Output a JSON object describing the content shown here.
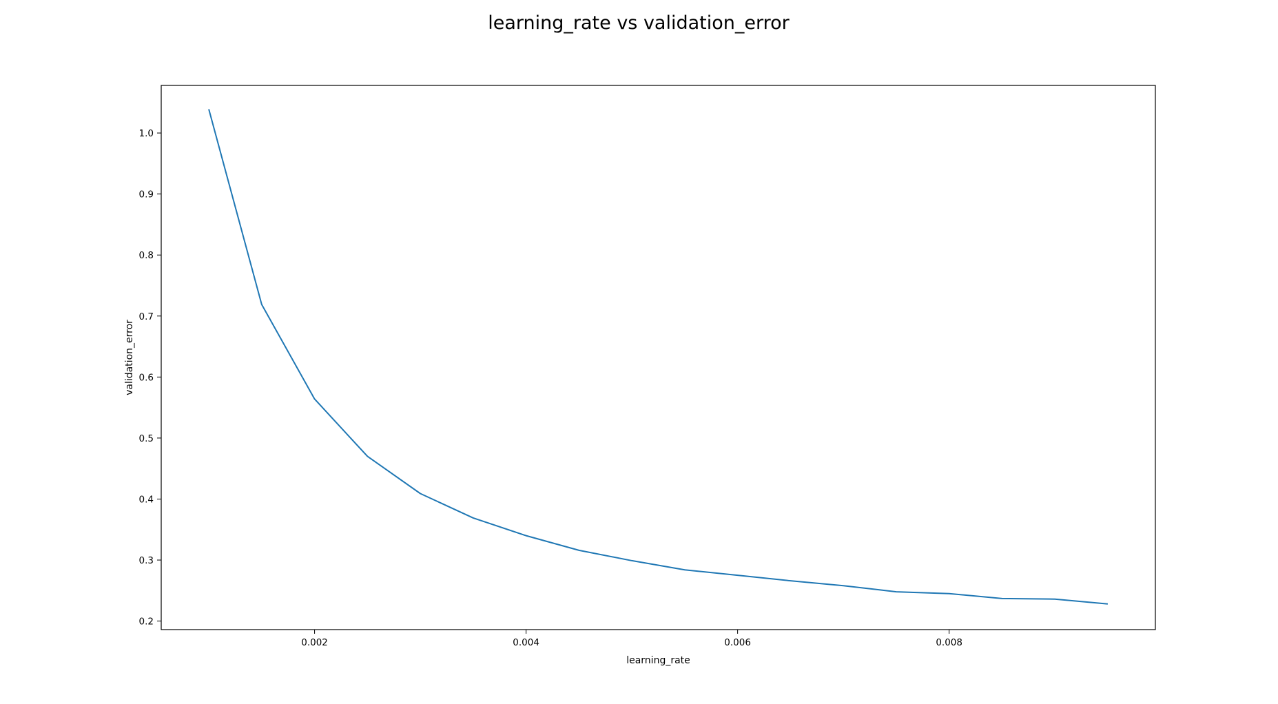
{
  "chart_data": {
    "type": "line",
    "title": "learning_rate vs validation_error",
    "xlabel": "learning_rate",
    "ylabel": "validation_error",
    "xlim": [
      0.00055,
      0.00995
    ],
    "ylim": [
      0.186,
      1.078
    ],
    "xticks": [
      0.002,
      0.004,
      0.006,
      0.008
    ],
    "xtick_labels": [
      "0.002",
      "0.004",
      "0.006",
      "0.008"
    ],
    "yticks": [
      0.2,
      0.3,
      0.4,
      0.5,
      0.6,
      0.7,
      0.8,
      0.9,
      1.0
    ],
    "ytick_labels": [
      "0.2",
      "0.3",
      "0.4",
      "0.5",
      "0.6",
      "0.7",
      "0.8",
      "0.9",
      "1.0"
    ],
    "grid": false,
    "legend": false,
    "series": [
      {
        "color": "#1f77b4",
        "x": [
          0.001,
          0.0015,
          0.002,
          0.0025,
          0.003,
          0.0035,
          0.004,
          0.0045,
          0.005,
          0.0055,
          0.006,
          0.0065,
          0.007,
          0.0075,
          0.008,
          0.0085,
          0.009,
          0.0095
        ],
        "y": [
          1.039,
          0.719,
          0.564,
          0.47,
          0.409,
          0.369,
          0.34,
          0.316,
          0.299,
          0.284,
          0.275,
          0.266,
          0.258,
          0.248,
          0.245,
          0.237,
          0.236,
          0.228
        ]
      }
    ]
  }
}
